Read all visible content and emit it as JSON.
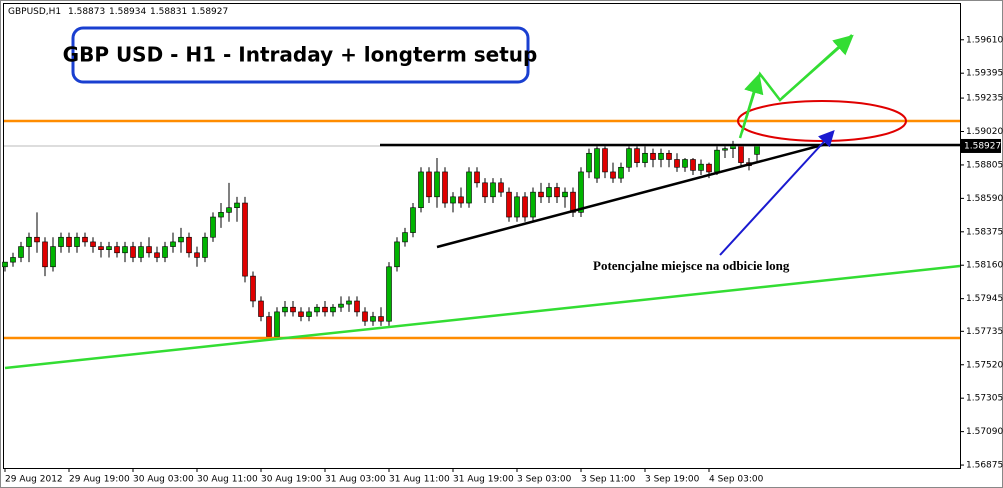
{
  "chart_data": {
    "type": "candlestick",
    "symbol": "GBPUSD,H1",
    "title": "GBP USD - H1 - Intraday + longterm setup",
    "annotation": "Potencjalne miejsce na odbicie long",
    "up_color": "#00b400",
    "down_color": "#e00000",
    "categories": [
      "29 Aug 2012",
      null,
      null,
      null,
      null,
      null,
      null,
      null,
      "29 Aug 19:00",
      null,
      null,
      null,
      null,
      null,
      null,
      null,
      "30 Aug 03:00",
      null,
      null,
      null,
      null,
      null,
      null,
      null,
      "30 Aug 11:00",
      null,
      null,
      null,
      null,
      null,
      null,
      null,
      "30 Aug 19:00",
      null,
      null,
      null,
      null,
      null,
      null,
      null,
      "31 Aug 03:00",
      null,
      null,
      null,
      null,
      null,
      null,
      null,
      "31 Aug 11:00",
      null,
      null,
      null,
      null,
      null,
      null,
      null,
      "31 Aug 19:00",
      null,
      null,
      null,
      null,
      null,
      null,
      null,
      "3 Sep 03:00",
      null,
      null,
      null,
      null,
      null,
      null,
      null,
      "3 Sep 11:00",
      null,
      null,
      null,
      null,
      null,
      null,
      null,
      "3 Sep 19:00",
      null,
      null,
      null,
      null,
      null,
      null,
      null,
      "4 Sep 03:00",
      null,
      null,
      null,
      null,
      null,
      null
    ],
    "open": [
      1.5815,
      1.5818,
      1.5821,
      1.5828,
      1.5834,
      1.5831,
      1.5815,
      1.5828,
      1.5834,
      1.5828,
      1.5834,
      1.5831,
      1.5828,
      1.5826,
      1.5828,
      1.5824,
      1.5828,
      1.5821,
      1.5828,
      1.5824,
      1.5821,
      1.5828,
      1.5831,
      1.5834,
      1.5824,
      1.5821,
      1.5834,
      1.5847,
      1.585,
      1.5853,
      1.5856,
      1.5809,
      1.5793,
      1.5783,
      1.577,
      1.5786,
      1.5789,
      1.5786,
      1.5783,
      1.5786,
      1.5789,
      1.5786,
      1.5789,
      1.5791,
      1.5793,
      1.5786,
      1.578,
      1.5783,
      1.578,
      1.5815,
      1.5831,
      1.5837,
      1.5853,
      1.5876,
      1.586,
      1.5876,
      1.5856,
      1.586,
      1.5856,
      1.5876,
      1.5869,
      1.586,
      1.5869,
      1.5863,
      1.5847,
      1.586,
      1.5847,
      1.5863,
      1.586,
      1.5866,
      1.586,
      1.5863,
      1.585,
      1.5876,
      1.5872,
      1.5891,
      1.5876,
      1.5872,
      1.5879,
      1.5891,
      1.5882,
      1.5888,
      1.5884,
      1.5888,
      1.5884,
      1.5879,
      1.5884,
      1.5877,
      1.5881,
      1.5876,
      1.589,
      1.5891,
      1.5893,
      1.5882,
      1.58873
    ],
    "high": [
      1.5818,
      1.5824,
      1.5831,
      1.5837,
      1.585,
      1.5834,
      1.5834,
      1.5837,
      1.5837,
      1.5837,
      1.5837,
      1.5834,
      1.5831,
      1.5831,
      1.5831,
      1.5831,
      1.5831,
      1.5831,
      1.5834,
      1.5828,
      1.5831,
      1.5837,
      1.584,
      1.5837,
      1.5828,
      1.5837,
      1.585,
      1.5856,
      1.5869,
      1.586,
      1.586,
      1.5812,
      1.5796,
      1.5786,
      1.5789,
      1.5793,
      1.5793,
      1.5789,
      1.5789,
      1.5791,
      1.5793,
      1.5791,
      1.5796,
      1.5796,
      1.5796,
      1.5789,
      1.5786,
      1.5789,
      1.5818,
      1.5834,
      1.584,
      1.5856,
      1.5879,
      1.5879,
      1.5885,
      1.5879,
      1.5863,
      1.5866,
      1.5879,
      1.5879,
      1.5872,
      1.5872,
      1.5872,
      1.5866,
      1.5863,
      1.5863,
      1.5866,
      1.5869,
      1.5869,
      1.5869,
      1.5866,
      1.5866,
      1.5879,
      1.5891,
      1.5893,
      1.5893,
      1.5882,
      1.5882,
      1.5893,
      1.5893,
      1.5893,
      1.5891,
      1.5891,
      1.589,
      1.5888,
      1.5885,
      1.5885,
      1.5884,
      1.5882,
      1.5893,
      1.5893,
      1.5896,
      1.5893,
      1.5885,
      1.58934
    ],
    "low": [
      1.5812,
      1.5815,
      1.5818,
      1.5818,
      1.5824,
      1.5809,
      1.5812,
      1.5824,
      1.5824,
      1.5824,
      1.5828,
      1.5824,
      1.5821,
      1.5821,
      1.5821,
      1.5818,
      1.5818,
      1.5818,
      1.5821,
      1.5818,
      1.5818,
      1.5824,
      1.5824,
      1.5821,
      1.5815,
      1.5818,
      1.5831,
      1.584,
      1.5844,
      1.5844,
      1.5805,
      1.5789,
      1.578,
      1.5768,
      1.5768,
      1.5783,
      1.5783,
      1.578,
      1.578,
      1.5783,
      1.5783,
      1.5783,
      1.5786,
      1.5786,
      1.5783,
      1.5777,
      1.5777,
      1.5777,
      1.5777,
      1.5812,
      1.5828,
      1.5834,
      1.585,
      1.5856,
      1.5853,
      1.5853,
      1.585,
      1.5853,
      1.5853,
      1.5866,
      1.5856,
      1.5856,
      1.586,
      1.5844,
      1.5844,
      1.5844,
      1.5844,
      1.5856,
      1.5856,
      1.5856,
      1.5853,
      1.5847,
      1.5847,
      1.5872,
      1.5869,
      1.5872,
      1.5869,
      1.5869,
      1.5876,
      1.5879,
      1.5879,
      1.5879,
      1.5879,
      1.5879,
      1.5876,
      1.5876,
      1.5874,
      1.5874,
      1.5872,
      1.5874,
      1.5885,
      1.5885,
      1.588,
      1.5877,
      1.58831
    ],
    "close": [
      1.5818,
      1.5821,
      1.5828,
      1.5834,
      1.5831,
      1.5815,
      1.5828,
      1.5834,
      1.5828,
      1.5834,
      1.5831,
      1.5828,
      1.5826,
      1.5828,
      1.5824,
      1.5828,
      1.5821,
      1.5828,
      1.5824,
      1.5821,
      1.5828,
      1.5831,
      1.5834,
      1.5824,
      1.5821,
      1.5834,
      1.5847,
      1.585,
      1.5853,
      1.5856,
      1.5809,
      1.5793,
      1.5783,
      1.577,
      1.5786,
      1.5789,
      1.5786,
      1.5783,
      1.5786,
      1.5789,
      1.5786,
      1.5789,
      1.5791,
      1.5793,
      1.5786,
      1.578,
      1.5783,
      1.578,
      1.5815,
      1.5831,
      1.5837,
      1.5853,
      1.5876,
      1.586,
      1.5876,
      1.5856,
      1.586,
      1.5856,
      1.5876,
      1.5869,
      1.586,
      1.5869,
      1.5863,
      1.5847,
      1.586,
      1.5847,
      1.5863,
      1.586,
      1.5866,
      1.586,
      1.5863,
      1.585,
      1.5876,
      1.5888,
      1.5891,
      1.5876,
      1.5872,
      1.5879,
      1.5891,
      1.5882,
      1.5888,
      1.5884,
      1.5888,
      1.5884,
      1.5879,
      1.5884,
      1.5877,
      1.5881,
      1.5876,
      1.589,
      1.5891,
      1.5893,
      1.5882,
      1.588,
      1.58927
    ],
    "ylim": [
      1.56856,
      1.5984
    ],
    "yticks": [
      {
        "value": 1.5961,
        "label": "1.59610"
      },
      {
        "value": 1.59395,
        "label": "1.59395"
      },
      {
        "value": 1.59235,
        "label": "1.59235"
      },
      {
        "value": 1.5902,
        "label": "1.59020"
      },
      {
        "value": 1.58805,
        "label": "1.58805"
      },
      {
        "value": 1.5859,
        "label": "1.58590"
      },
      {
        "value": 1.58375,
        "label": "1.58375"
      },
      {
        "value": 1.5816,
        "label": "1.58160"
      },
      {
        "value": 1.57945,
        "label": "1.57945"
      },
      {
        "value": 1.57735,
        "label": "1.57735"
      },
      {
        "value": 1.5752,
        "label": "1.57520"
      },
      {
        "value": 1.57305,
        "label": "1.57305"
      },
      {
        "value": 1.5709,
        "label": "1.57090"
      },
      {
        "value": 1.56875,
        "label": "1.56875"
      }
    ]
  }
}
